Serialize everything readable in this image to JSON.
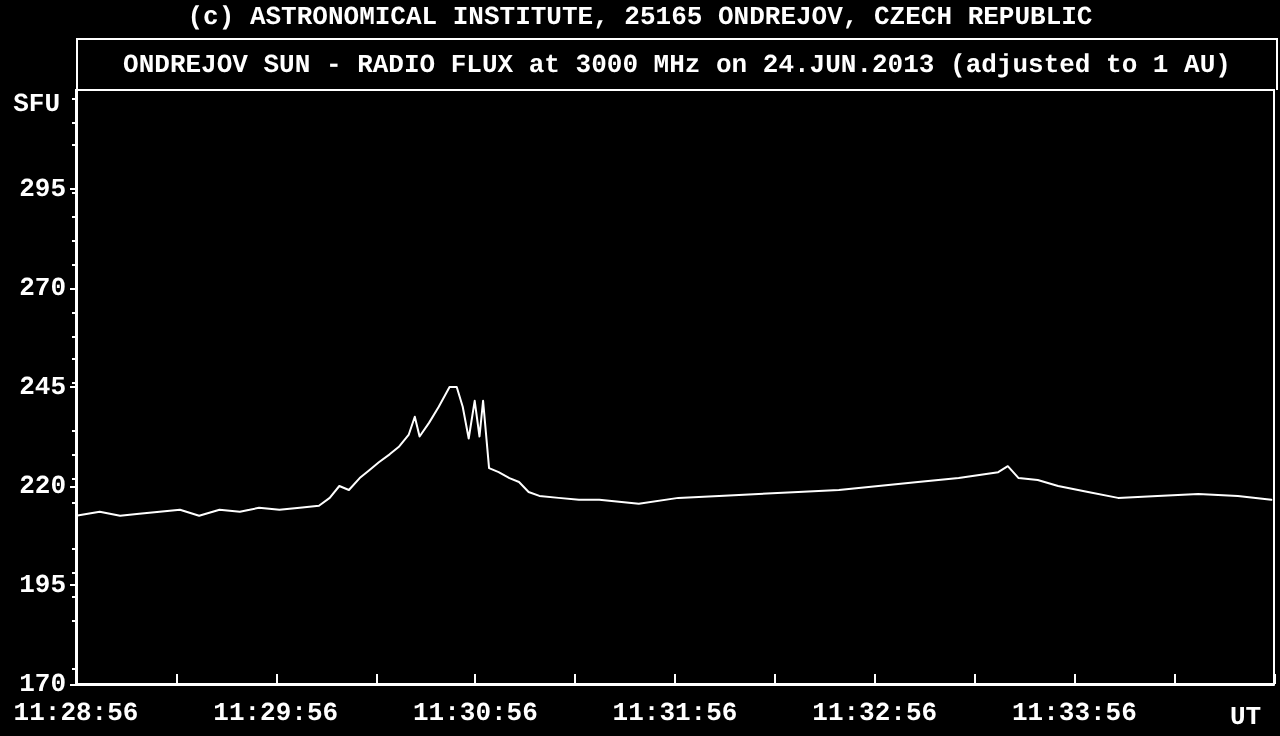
{
  "chart_data": {
    "type": "line",
    "title": "(c) ASTRONOMICAL INSTITUTE, 25165 ONDREJOV, CZECH REPUBLIC",
    "subtitle": "ONDREJOV SUN - RADIO FLUX at 3000 MHz on 24.JUN.2013 (adjusted to 1 AU)",
    "xlabel": "UT",
    "ylabel": "SFU",
    "x": [
      11.48222,
      11.4842,
      11.4859,
      11.4875,
      11.4892,
      11.4909,
      11.4925,
      11.4942,
      11.4959,
      11.4975,
      11.4992,
      11.5009,
      11.5025,
      11.5034,
      11.5042,
      11.505,
      11.5059,
      11.5067,
      11.5075,
      11.5084,
      11.5092,
      11.51,
      11.5105,
      11.5109,
      11.5117,
      11.5125,
      11.5134,
      11.514,
      11.5145,
      11.515,
      11.5155,
      11.5159,
      11.5162,
      11.5167,
      11.5175,
      11.5184,
      11.5192,
      11.52,
      11.5209,
      11.5225,
      11.5242,
      11.5259,
      11.5292,
      11.5325,
      11.5359,
      11.5392,
      11.5425,
      11.5459,
      11.5492,
      11.5525,
      11.5559,
      11.5592,
      11.56,
      11.5609,
      11.5625,
      11.5642,
      11.5667,
      11.5692,
      11.5725,
      11.5759,
      11.5792,
      11.582
    ],
    "series": [
      {
        "color": "#ffffff",
        "values": [
          212.5,
          213.5,
          212.5,
          213,
          213.5,
          214,
          212.5,
          214,
          213.5,
          214.5,
          214,
          214.5,
          215,
          217,
          220,
          219,
          222,
          224,
          226,
          228,
          230,
          233,
          237.5,
          232.5,
          236,
          240,
          245,
          245,
          240,
          232,
          241.5,
          232.5,
          241.5,
          224.5,
          223.5,
          222,
          221,
          218.5,
          217.5,
          217,
          216.5,
          216.5,
          215.5,
          217,
          217.5,
          218,
          218.5,
          219,
          220,
          221,
          222,
          223.5,
          225,
          222,
          221.5,
          220,
          218.5,
          217,
          217.5,
          218,
          217.5,
          216.5
        ]
      }
    ],
    "xlim": [
      11.48222,
      11.58222
    ],
    "xticks": [
      {
        "value": 11.48222,
        "label": "11:28:56"
      },
      {
        "value": 11.49056,
        "label": null
      },
      {
        "value": 11.49889,
        "label": "11:29:56"
      },
      {
        "value": 11.50722,
        "label": null
      },
      {
        "value": 11.51556,
        "label": "11:30:56"
      },
      {
        "value": 11.52389,
        "label": null
      },
      {
        "value": 11.53222,
        "label": "11:31:56"
      },
      {
        "value": 11.54056,
        "label": null
      },
      {
        "value": 11.54889,
        "label": "11:32:56"
      },
      {
        "value": 11.55722,
        "label": null
      },
      {
        "value": 11.56556,
        "label": "11:33:56"
      },
      {
        "value": 11.57389,
        "label": null
      },
      {
        "value": 11.58222,
        "label": null
      }
    ],
    "ylim": [
      170,
      320
    ],
    "yticks": [
      170,
      195,
      220,
      245,
      270,
      295
    ],
    "grid": false,
    "marker": "none",
    "line_style": "solid"
  }
}
